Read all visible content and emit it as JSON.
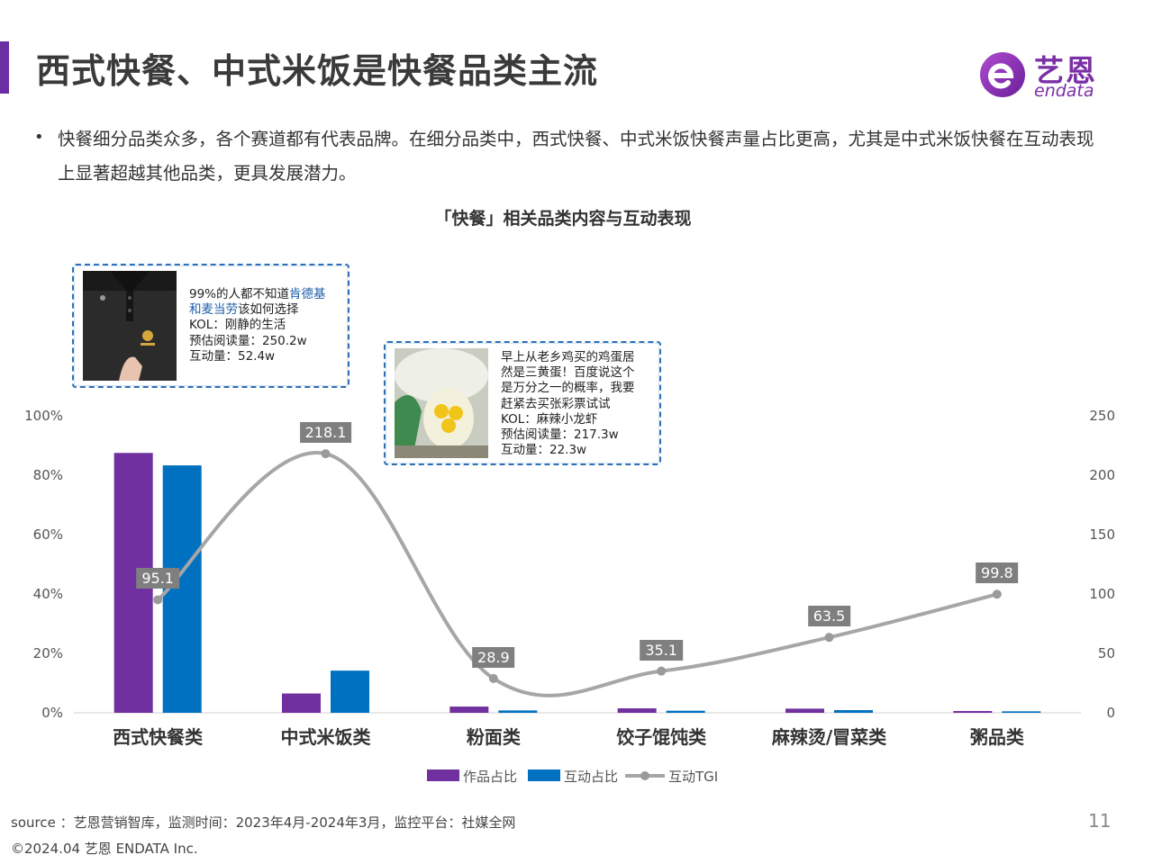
{
  "header": {
    "title": "西式快餐、中式米饭是快餐品类主流",
    "logo_name": "艺恩",
    "logo_sub": "endata"
  },
  "bullet": {
    "dot": "•",
    "text": "快餐细分品类众多，各个赛道都有代表品牌。在细分品类中，西式快餐、中式米饭快餐声量占比更高，尤其是中式米饭快餐在互动表现上显著超越其他品类，更具发展潜力。"
  },
  "callouts": [
    {
      "line1_pre": "99%的人都不知道",
      "line1_hl": "肯德基",
      "line2_hl": "和麦当劳",
      "line2_post": "该如何选择",
      "kol": "KOL：刚静的生活",
      "reads": "预估阅读量：250.2w",
      "interactions": "互动量：52.4w"
    },
    {
      "line1": "早上从老乡鸡买的鸡蛋居",
      "line2": "然是三黄蛋！百度说这个",
      "line3": "是万分之一的概率，我要",
      "line4": "赶紧去买张彩票试试",
      "kol": "KOL：麻辣小龙虾",
      "reads": "预估阅读量：217.3w",
      "interactions": "互动量：22.3w"
    }
  ],
  "chart_data": {
    "type": "bar",
    "title": "「快餐」相关品类内容与互动表现",
    "categories": [
      "西式快餐类",
      "中式米饭类",
      "粉面类",
      "饺子馄饨类",
      "麻辣烫/冒菜类",
      "粥品类"
    ],
    "y_left": {
      "ylim": [
        0,
        100
      ],
      "ticks": [
        "0%",
        "20%",
        "40%",
        "60%",
        "80%",
        "100%"
      ]
    },
    "y_right": {
      "ylim": [
        0,
        250
      ],
      "ticks": [
        "0",
        "50",
        "100",
        "150",
        "200",
        "250"
      ]
    },
    "series": [
      {
        "name": "作品占比",
        "type": "bar",
        "axis": "left",
        "color": "#7030a0",
        "values": [
          87.5,
          6.5,
          2.1,
          1.5,
          1.4,
          0.6
        ]
      },
      {
        "name": "互动占比",
        "type": "bar",
        "axis": "left",
        "color": "#0070c0",
        "values": [
          83.3,
          14.2,
          0.8,
          0.7,
          0.9,
          0.5
        ]
      },
      {
        "name": "互动TGI",
        "type": "line",
        "axis": "right",
        "color": "#a6a6a6",
        "values": [
          95.1,
          218.1,
          28.9,
          35.1,
          63.5,
          99.8
        ],
        "labels": [
          "95.1",
          "218.1",
          "28.9",
          "35.1",
          "63.5",
          "99.8"
        ]
      }
    ],
    "legend": "bottom-center",
    "grid": false
  },
  "footer": {
    "source": "source ：艺恩营销智库，监测时间：2023年4月-2024年3月，监控平台：社媒全网",
    "copyright": "©2024.04  艺恩 ENDATA Inc.",
    "page": "11"
  }
}
